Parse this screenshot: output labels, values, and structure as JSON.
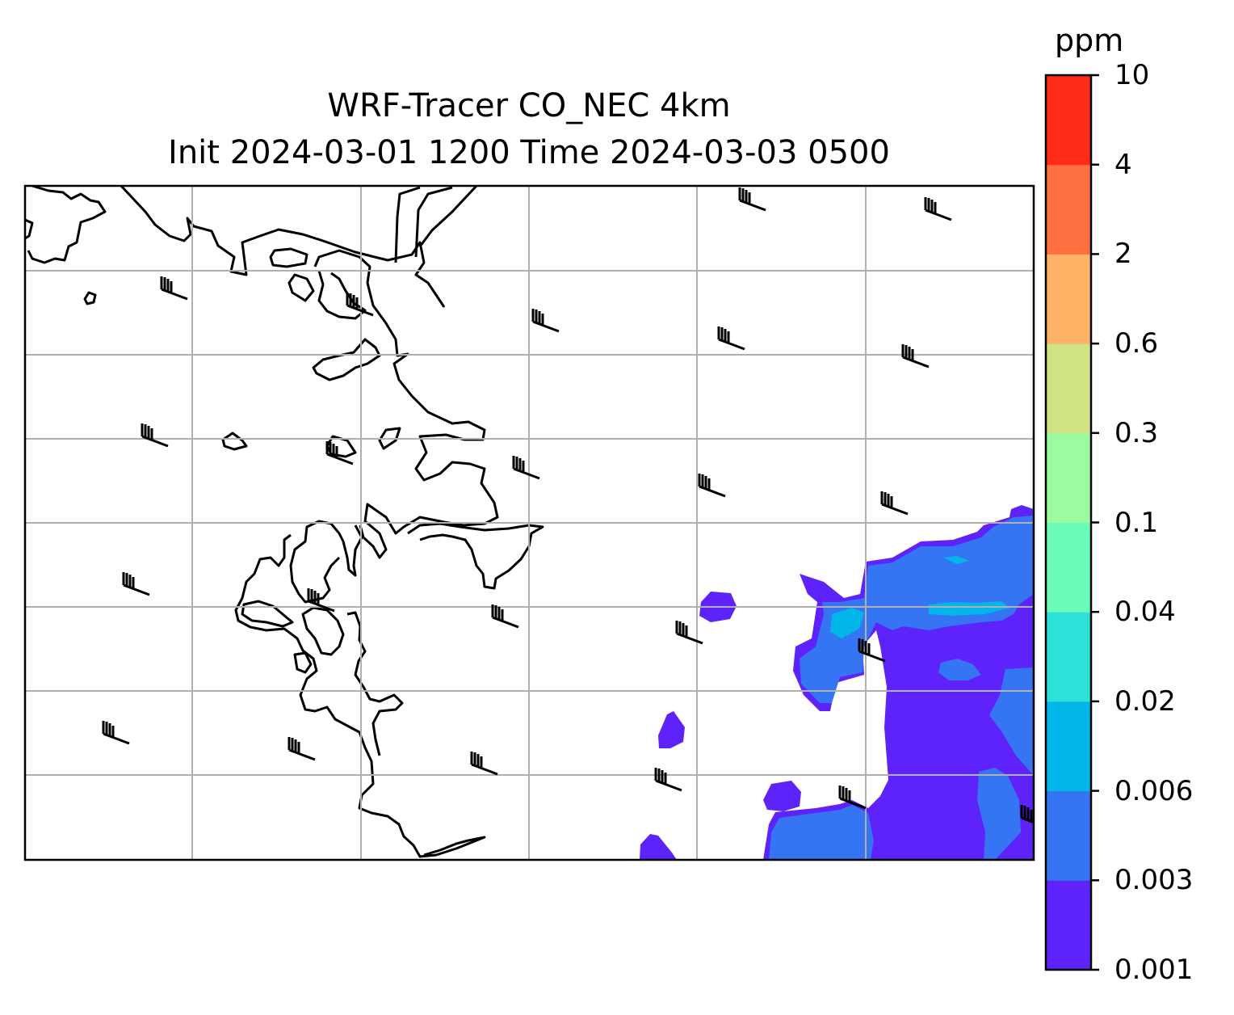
{
  "title": {
    "line1": "WRF-Tracer CO_NEC 4km",
    "line2": "Init 2024-03-01 1200 Time 2024-03-03 0500"
  },
  "colorbar": {
    "unit": "ppm",
    "levels": [
      "0.001",
      "0.003",
      "0.006",
      "0.02",
      "0.04",
      "0.1",
      "0.3",
      "0.6",
      "2",
      "4",
      "10"
    ],
    "colors": [
      "#5e22fa",
      "#3574f3",
      "#02b6ea",
      "#2de0d8",
      "#6bfbba",
      "#9bfc9f",
      "#cfe284",
      "#fdb266",
      "#ff7040",
      "#ff2a18"
    ]
  },
  "map": {
    "gridlines": true,
    "coastline_color": "#000000",
    "gridline_color": "#b0b0b0"
  }
}
